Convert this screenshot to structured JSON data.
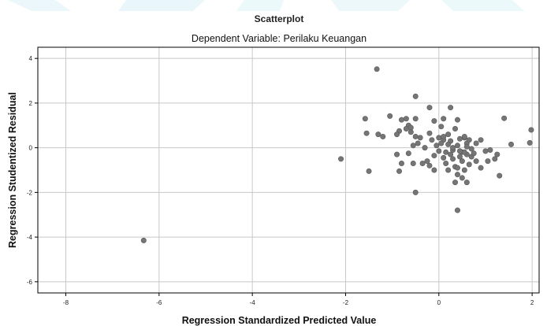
{
  "chart_data": {
    "type": "scatter",
    "title": "Scatterplot",
    "subtitle": "Dependent Variable: Perilaku Keuangan",
    "xlabel": "Regression Standardized Predicted Value",
    "ylabel": "Regression Studentized Residual",
    "xlim": [
      -8.6,
      2.15
    ],
    "ylim": [
      -6.5,
      4.5
    ],
    "xticks": [
      -8,
      -6,
      -4,
      -2,
      0,
      2
    ],
    "yticks": [
      -6,
      -4,
      -2,
      0,
      2,
      4
    ],
    "grid": true,
    "point_color": "#757575",
    "grid_color": "#c8c8c8",
    "points": [
      [
        -6.33,
        -4.15
      ],
      [
        -2.1,
        -0.5
      ],
      [
        -1.33,
        3.52
      ],
      [
        -0.5,
        2.3
      ],
      [
        0.25,
        1.8
      ],
      [
        -0.2,
        1.8
      ],
      [
        1.4,
        1.32
      ],
      [
        -1.58,
        1.3
      ],
      [
        -1.05,
        1.42
      ],
      [
        -0.7,
        1.3
      ],
      [
        -0.5,
        1.3
      ],
      [
        -0.8,
        1.25
      ],
      [
        -0.1,
        1.2
      ],
      [
        0.1,
        1.3
      ],
      [
        0.4,
        1.25
      ],
      [
        -0.65,
        1.0
      ],
      [
        -0.6,
        0.9
      ],
      [
        -0.7,
        0.85
      ],
      [
        -0.85,
        0.75
      ],
      [
        -0.6,
        0.7
      ],
      [
        -0.9,
        0.6
      ],
      [
        -1.55,
        0.65
      ],
      [
        -1.3,
        0.6
      ],
      [
        -1.2,
        0.5
      ],
      [
        -0.5,
        0.5
      ],
      [
        -0.4,
        0.45
      ],
      [
        -0.15,
        0.35
      ],
      [
        0.0,
        0.45
      ],
      [
        0.1,
        0.35
      ],
      [
        0.2,
        0.6
      ],
      [
        0.25,
        0.3
      ],
      [
        0.45,
        0.4
      ],
      [
        0.55,
        0.45
      ],
      [
        0.9,
        0.35
      ],
      [
        0.05,
        0.95
      ],
      [
        0.35,
        0.85
      ],
      [
        0.05,
        0.2
      ],
      [
        -0.05,
        0.1
      ],
      [
        -0.45,
        0.2
      ],
      [
        -0.55,
        0.1
      ],
      [
        0.4,
        0.1
      ],
      [
        0.6,
        0.2
      ],
      [
        0.7,
        -0.05
      ],
      [
        0.3,
        -0.1
      ],
      [
        0.5,
        -0.2
      ],
      [
        0.6,
        -0.3
      ],
      [
        0.45,
        -0.4
      ],
      [
        1.1,
        -0.1
      ],
      [
        1.55,
        0.15
      ],
      [
        1.95,
        0.22
      ],
      [
        1.98,
        0.8
      ],
      [
        0.8,
        -0.6
      ],
      [
        0.65,
        -0.75
      ],
      [
        0.5,
        -0.6
      ],
      [
        0.3,
        -0.5
      ],
      [
        0.1,
        -0.45
      ],
      [
        -0.1,
        -0.35
      ],
      [
        -0.25,
        -0.6
      ],
      [
        -0.35,
        -0.7
      ],
      [
        -0.2,
        -0.8
      ],
      [
        0.35,
        -0.85
      ],
      [
        0.2,
        -1.0
      ],
      [
        0.55,
        -1.0
      ],
      [
        0.9,
        -0.9
      ],
      [
        1.05,
        -0.6
      ],
      [
        1.2,
        -0.5
      ],
      [
        1.25,
        -0.3
      ],
      [
        1.3,
        -1.25
      ],
      [
        0.4,
        -1.2
      ],
      [
        0.5,
        -1.35
      ],
      [
        0.35,
        -1.55
      ],
      [
        0.6,
        -1.55
      ],
      [
        -0.8,
        -0.7
      ],
      [
        -0.85,
        -1.05
      ],
      [
        -0.55,
        -0.7
      ],
      [
        -0.65,
        -0.25
      ],
      [
        -0.9,
        -0.3
      ],
      [
        -1.5,
        -1.05
      ],
      [
        -0.5,
        -2.0
      ],
      [
        0.4,
        -2.8
      ],
      [
        0.15,
        -0.2
      ],
      [
        0.0,
        -0.15
      ],
      [
        0.3,
        0.0
      ],
      [
        -0.3,
        0.0
      ],
      [
        0.8,
        0.2
      ],
      [
        1.0,
        -0.15
      ],
      [
        0.55,
        0.5
      ],
      [
        0.7,
        -0.4
      ],
      [
        0.25,
        -0.3
      ],
      [
        0.6,
        0.05
      ],
      [
        0.45,
        -0.15
      ],
      [
        0.1,
        0.5
      ],
      [
        -0.2,
        0.65
      ],
      [
        0.15,
        -0.7
      ],
      [
        0.75,
        -0.25
      ],
      [
        0.4,
        -0.9
      ],
      [
        0.55,
        -0.2
      ],
      [
        0.2,
        0.15
      ],
      [
        -0.1,
        -1.0
      ],
      [
        0.65,
        0.35
      ]
    ]
  }
}
